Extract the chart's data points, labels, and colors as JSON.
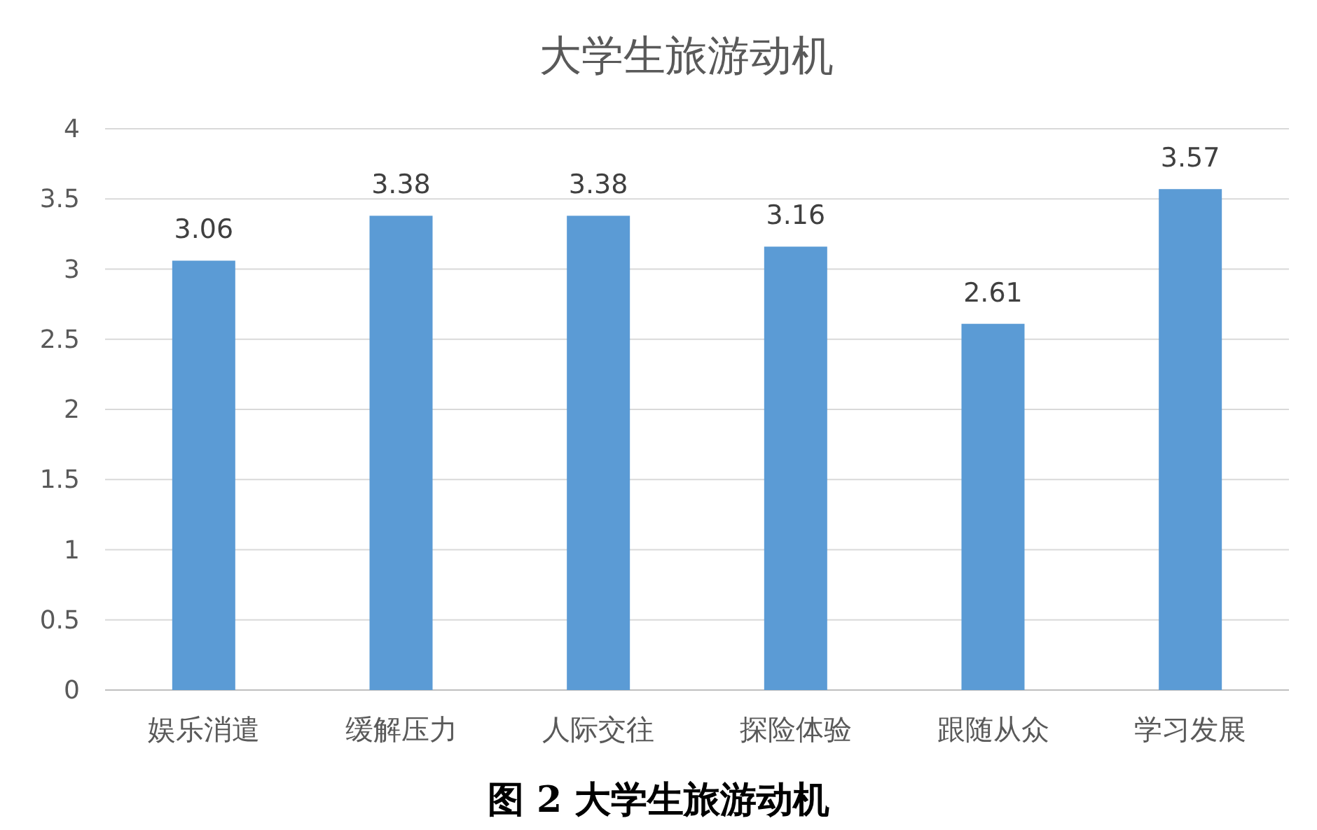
{
  "chart_data": {
    "type": "bar",
    "title": "大学生旅游动机",
    "categories": [
      "娱乐消遣",
      "缓解压力",
      "人际交往",
      "探险体验",
      "跟随从众",
      "学习发展"
    ],
    "values": [
      3.06,
      3.38,
      3.38,
      3.16,
      2.61,
      3.57
    ],
    "color": "#5b9bd5",
    "ylim": [
      0,
      4
    ],
    "yticks": [
      0,
      0.5,
      1,
      1.5,
      2,
      2.5,
      3,
      3.5,
      4
    ],
    "grid": "y",
    "data_labels": true,
    "annotations": [
      "图 2  大学生旅游动机"
    ]
  }
}
